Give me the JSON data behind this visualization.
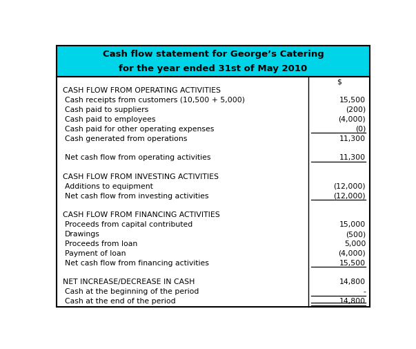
{
  "title_line1": "Cash flow statement for George’s Catering",
  "title_line2_pre": "for the year ended 31",
  "title_line2_super": "st",
  "title_line2_post": " of May 2010",
  "title_bg": "#00d4e8",
  "title_color": "#000000",
  "col_header": "$",
  "rows": [
    {
      "label": "CASH FLOW FROM OPERATING ACTIVITIES",
      "value": "",
      "bold": false,
      "caps": true,
      "indent": false,
      "underline_val": false,
      "double_underline": false
    },
    {
      "label": "Cash receipts from customers (10,500 + 5,000)",
      "value": "15,500",
      "bold": false,
      "caps": false,
      "indent": true,
      "underline_val": false,
      "double_underline": false
    },
    {
      "label": "Cash paid to suppliers",
      "value": "(200)",
      "bold": false,
      "caps": false,
      "indent": true,
      "underline_val": false,
      "double_underline": false
    },
    {
      "label": "Cash paid to employees",
      "value": "(4,000)",
      "bold": false,
      "caps": false,
      "indent": true,
      "underline_val": false,
      "double_underline": false
    },
    {
      "label": "Cash paid for other operating expenses",
      "value": "(0)",
      "bold": false,
      "caps": false,
      "indent": true,
      "underline_val": true,
      "double_underline": false
    },
    {
      "label": "Cash generated from operations",
      "value": "11,300",
      "bold": false,
      "caps": false,
      "indent": true,
      "underline_val": false,
      "double_underline": false
    },
    {
      "label": "",
      "value": "",
      "bold": false,
      "caps": false,
      "indent": false,
      "underline_val": false,
      "double_underline": false
    },
    {
      "label": "Net cash flow from operating activities",
      "value": "11,300",
      "bold": false,
      "caps": false,
      "indent": true,
      "underline_val": true,
      "double_underline": false
    },
    {
      "label": "",
      "value": "",
      "bold": false,
      "caps": false,
      "indent": false,
      "underline_val": false,
      "double_underline": false
    },
    {
      "label": "CASH FLOW FROM INVESTING ACTIVITIES",
      "value": "",
      "bold": false,
      "caps": true,
      "indent": false,
      "underline_val": false,
      "double_underline": false
    },
    {
      "label": "Additions to equipment",
      "value": "(12,000)",
      "bold": false,
      "caps": false,
      "indent": true,
      "underline_val": false,
      "double_underline": false
    },
    {
      "label": "Net cash flow from investing activities",
      "value": "(12,000)",
      "bold": false,
      "caps": false,
      "indent": true,
      "underline_val": true,
      "double_underline": false
    },
    {
      "label": "",
      "value": "",
      "bold": false,
      "caps": false,
      "indent": false,
      "underline_val": false,
      "double_underline": false
    },
    {
      "label": "CASH FLOW FROM FINANCING ACTIVITIES",
      "value": "",
      "bold": false,
      "caps": true,
      "indent": false,
      "underline_val": false,
      "double_underline": false
    },
    {
      "label": "Proceeds from capital contributed",
      "value": "15,000",
      "bold": false,
      "caps": false,
      "indent": true,
      "underline_val": false,
      "double_underline": false
    },
    {
      "label": "Drawings",
      "value": "(500)",
      "bold": false,
      "caps": false,
      "indent": true,
      "underline_val": false,
      "double_underline": false
    },
    {
      "label": "Proceeds from loan",
      "value": "5,000",
      "bold": false,
      "caps": false,
      "indent": true,
      "underline_val": false,
      "double_underline": false
    },
    {
      "label": "Payment of loan",
      "value": "(4,000)",
      "bold": false,
      "caps": false,
      "indent": true,
      "underline_val": false,
      "double_underline": false
    },
    {
      "label": "Net cash flow from financing activities",
      "value": "15,500",
      "bold": false,
      "caps": false,
      "indent": true,
      "underline_val": true,
      "double_underline": false
    },
    {
      "label": "",
      "value": "",
      "bold": false,
      "caps": false,
      "indent": false,
      "underline_val": false,
      "double_underline": false
    },
    {
      "label": "NET INCREASE/DECREASE IN CASH",
      "value": "14,800",
      "bold": false,
      "caps": true,
      "indent": false,
      "underline_val": false,
      "double_underline": false
    },
    {
      "label": "Cash at the beginning of the period",
      "value": "-",
      "bold": false,
      "caps": false,
      "indent": true,
      "underline_val": true,
      "double_underline": false
    },
    {
      "label": "Cash at the end of the period",
      "value": "14,800",
      "bold": false,
      "caps": false,
      "indent": true,
      "underline_val": true,
      "double_underline": true
    }
  ],
  "figsize": [
    6.03,
    5.05
  ],
  "dpi": 100,
  "bg_color": "#ffffff",
  "border_color": "#000000",
  "line_color": "#000000",
  "font_size": 7.8,
  "title_font_size": 9.5,
  "col_divider": 0.795
}
